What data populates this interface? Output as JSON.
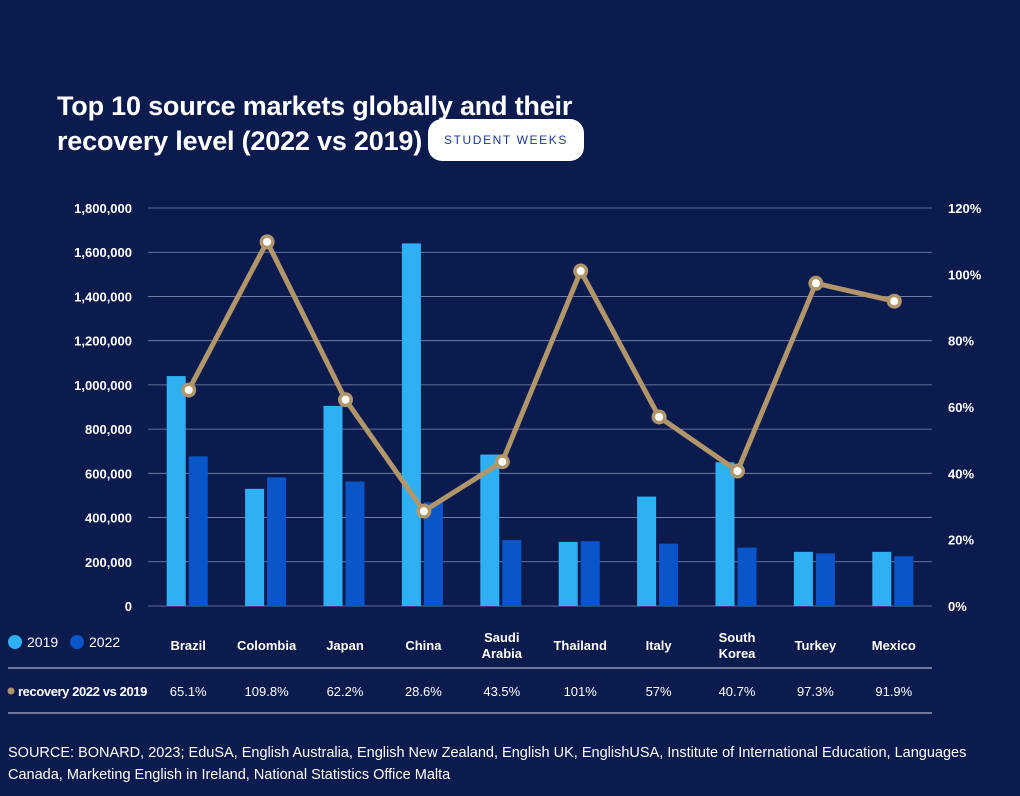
{
  "title": {
    "line1": "Top 10 source markets globally and their",
    "line2": "recovery level (2022 vs 2019)",
    "badge": "STUDENT WEEKS"
  },
  "colors": {
    "background": "#0b1b4d",
    "series_2019": "#2eb0f5",
    "series_2022": "#0a55c9",
    "recovery": "#b0966a"
  },
  "chart_data": {
    "type": "bar",
    "categories": [
      "Brazil",
      "Colombia",
      "Japan",
      "China",
      "Saudi Arabia",
      "Thailand",
      "Italy",
      "South Korea",
      "Turkey",
      "Mexico"
    ],
    "category_lines": [
      [
        "Brazil"
      ],
      [
        "Colombia"
      ],
      [
        "Japan"
      ],
      [
        "China"
      ],
      [
        "Saudi",
        "Arabia"
      ],
      [
        "Thailand"
      ],
      [
        "Italy"
      ],
      [
        "South",
        "Korea"
      ],
      [
        "Turkey"
      ],
      [
        "Mexico"
      ]
    ],
    "series": [
      {
        "name": "2019",
        "values": [
          1040000,
          530000,
          905000,
          1640000,
          685000,
          290000,
          495000,
          650000,
          245000,
          245000
        ]
      },
      {
        "name": "2022",
        "values": [
          677000,
          582000,
          563000,
          469000,
          298000,
          293000,
          282000,
          264000,
          238000,
          225000
        ]
      }
    ],
    "line_series": {
      "name": "recovery 2022 vs 2019",
      "values": [
        65.1,
        109.8,
        62.2,
        28.6,
        43.5,
        101,
        57,
        40.7,
        97.3,
        91.9
      ],
      "labels": [
        "65.1%",
        "109.8%",
        "62.2%",
        "28.6%",
        "43.5%",
        "101%",
        "57%",
        "40.7%",
        "97.3%",
        "91.9%"
      ]
    },
    "y_left": {
      "range": [
        0,
        1800000
      ],
      "ticks": [
        "0",
        "200,000",
        "400,000",
        "600,000",
        "800,000",
        "1,000,000",
        "1,200,000",
        "1,400,000",
        "1,600,000",
        "1,800,000"
      ]
    },
    "y_right": {
      "range": [
        0,
        120
      ],
      "ticks": [
        "0%",
        "20%",
        "40%",
        "60%",
        "80%",
        "100%",
        "120%"
      ]
    },
    "grid": true,
    "legend_placement": "bottom-left"
  },
  "source": {
    "label": "SOURCE:",
    "text": "BONARD, 2023; EduSA, English Australia, English New Zealand, English UK, EnglishUSA, Institute of International Education, Languages Canada, Marketing English in Ireland, National Statistics Office Malta"
  }
}
